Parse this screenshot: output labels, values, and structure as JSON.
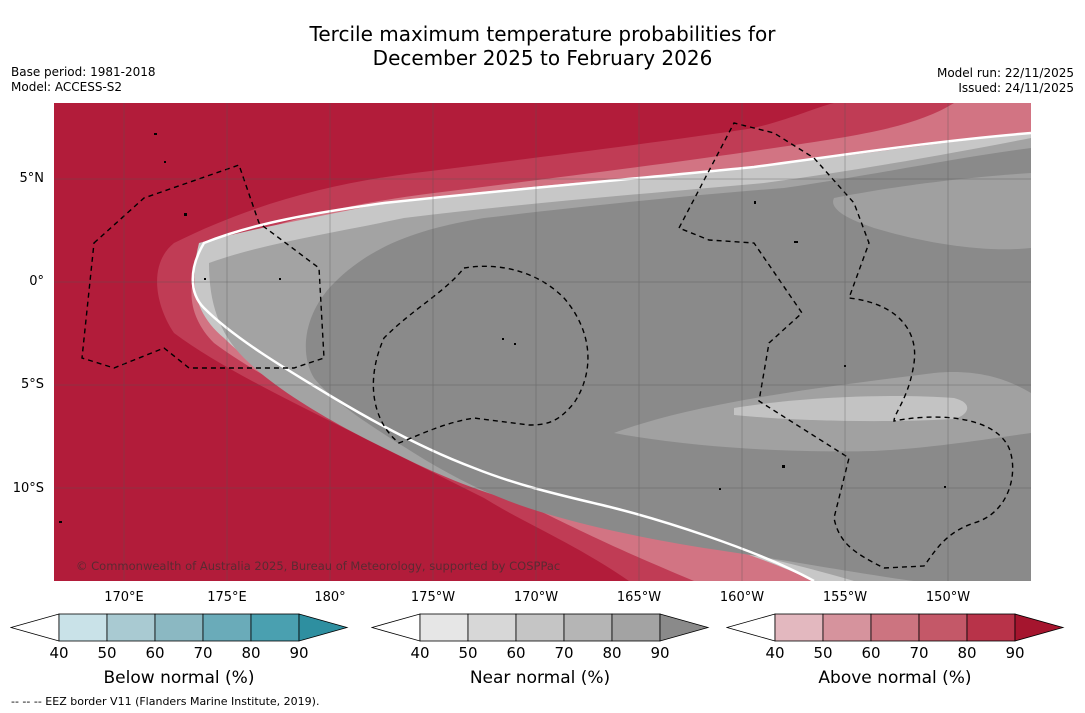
{
  "title": {
    "line1": "Tercile maximum temperature probabilities for",
    "line2": "December 2025 to February 2026"
  },
  "meta_left": {
    "base_period": "Base period: 1981-2018",
    "model": "Model: ACCESS-S2"
  },
  "meta_right": {
    "model_run": "Model run: 22/11/2025",
    "issued": "Issued: 24/11/2025"
  },
  "map": {
    "latitude_labels": [
      "5°N",
      "0°",
      "5°S",
      "10°S"
    ],
    "longitude_labels": [
      "170°E",
      "175°E",
      "180°",
      "175°W",
      "170°W",
      "165°W",
      "160°W",
      "155°W",
      "150°W"
    ],
    "copyright": "© Commonwealth of Australia 2025, Bureau of Meteorology, supported by COSPPac",
    "colors": {
      "above_high": "#b21c3a",
      "above_mid": "#c03c55",
      "above_low": "#d27483",
      "near_dark": "#8a8a8a",
      "near_mid": "#a3a3a3",
      "near_light": "#c7c7c7"
    }
  },
  "colorbars": [
    {
      "title": "Below normal (%)",
      "ticks": [
        "40",
        "50",
        "60",
        "70",
        "80",
        "90"
      ],
      "colors": [
        "#c9e2e8",
        "#a9cad2",
        "#8bb8c2",
        "#6aabb9",
        "#4aa0b0",
        "#2e8fa0"
      ]
    },
    {
      "title": "Near normal (%)",
      "ticks": [
        "40",
        "50",
        "60",
        "70",
        "80",
        "90"
      ],
      "colors": [
        "#e6e6e6",
        "#d7d7d7",
        "#c5c5c5",
        "#b5b5b5",
        "#a3a3a3",
        "#8a8a8a"
      ]
    },
    {
      "title": "Above normal (%)",
      "ticks": [
        "40",
        "50",
        "60",
        "70",
        "80",
        "90"
      ],
      "colors": [
        "#e3b8bf",
        "#d6939d",
        "#cc7480",
        "#c45868",
        "#b83349",
        "#a5152e"
      ]
    }
  ],
  "footnote": "--  --  -- EEZ border V11 (Flanders Marine Institute, 2019)."
}
